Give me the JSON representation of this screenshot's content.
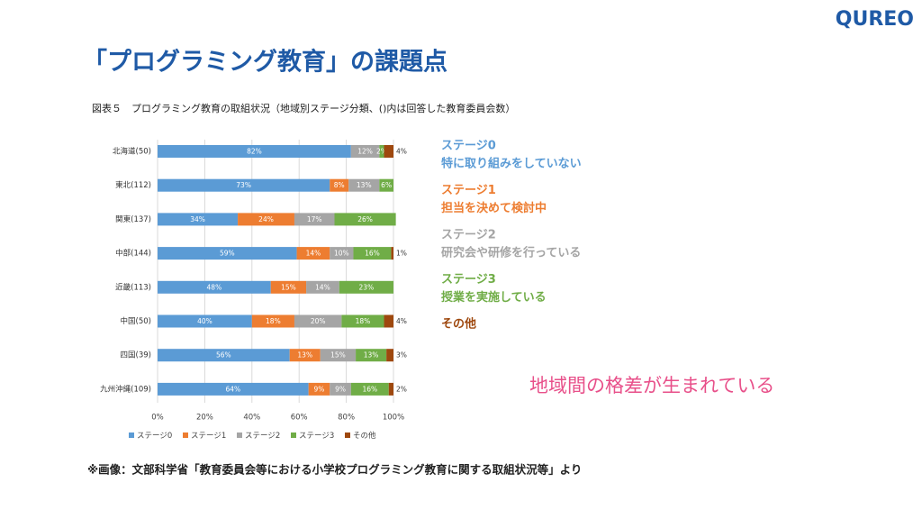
{
  "logo": "QUREO",
  "title": "「プログラミング教育」の課題点",
  "message": "地域間の格差が生まれている",
  "footnote": "※画像：文部科学省「教育委員会等における小学校プログラミング教育に関する取組状況等」より",
  "stage_notes": [
    {
      "title": "ステージ0",
      "text": "特に取り組みをしていない",
      "color": "#5b9bd5"
    },
    {
      "title": "ステージ1",
      "text": "担当を決めて検討中",
      "color": "#ed7d31"
    },
    {
      "title": "ステージ2",
      "text": "研究会や研修を行っている",
      "color": "#a5a5a5"
    },
    {
      "title": "ステージ3",
      "text": "授業を実施している",
      "color": "#70ad47"
    },
    {
      "title": "その他",
      "color": "#9e480e"
    }
  ],
  "chart_data": {
    "type": "stacked_barh",
    "title": "図表５　プログラミング教育の取組状況（地域別ステージ分類、()内は回答した教育委員会数）",
    "categories": [
      "北海道(50)",
      "東北(112)",
      "関東(137)",
      "中部(144)",
      "近畿(113)",
      "中国(50)",
      "四国(39)",
      "九州沖縄(109)"
    ],
    "series": [
      {
        "name": "ステージ0",
        "color": "#5b9bd5",
        "values": [
          82,
          73,
          34,
          59,
          48,
          40,
          56,
          64
        ],
        "value_labels": [
          "82%",
          "73%",
          "34%",
          "59%",
          "48%",
          "40%",
          "56%",
          "64%"
        ]
      },
      {
        "name": "ステージ1",
        "color": "#ed7d31",
        "values": [
          0,
          8,
          24,
          14,
          15,
          18,
          13,
          9
        ],
        "value_labels": [
          null,
          "8%",
          "24%",
          "14%",
          "15%",
          "18%",
          "13%",
          "9%"
        ]
      },
      {
        "name": "ステージ2",
        "color": "#a5a5a5",
        "values": [
          12,
          13,
          17,
          10,
          14,
          20,
          15,
          9
        ],
        "value_labels": [
          "12%",
          "13%",
          "17%",
          "10%",
          "14%",
          "20%",
          "15%",
          "9%"
        ]
      },
      {
        "name": "ステージ3",
        "color": "#70ad47",
        "values": [
          2,
          6,
          26,
          16,
          23,
          18,
          13,
          16
        ],
        "value_labels": [
          "2%",
          "6%",
          "26%",
          "16%",
          "23%",
          "18%",
          "13%",
          "16%"
        ]
      },
      {
        "name": "その他",
        "color": "#9e480e",
        "values": [
          4,
          0,
          0,
          1,
          0,
          4,
          3,
          2
        ],
        "value_labels": [
          "4%",
          null,
          null,
          "1%",
          null,
          "4%",
          "3%",
          "2%"
        ]
      }
    ],
    "xlim": [
      0,
      100
    ],
    "xticks": [
      {
        "value": 0,
        "label": "0%"
      },
      {
        "value": 20,
        "label": "20%"
      },
      {
        "value": 40,
        "label": "40%"
      },
      {
        "value": 60,
        "label": "60%"
      },
      {
        "value": 80,
        "label": "80%"
      },
      {
        "value": 100,
        "label": "100%"
      }
    ],
    "grid": true
  }
}
